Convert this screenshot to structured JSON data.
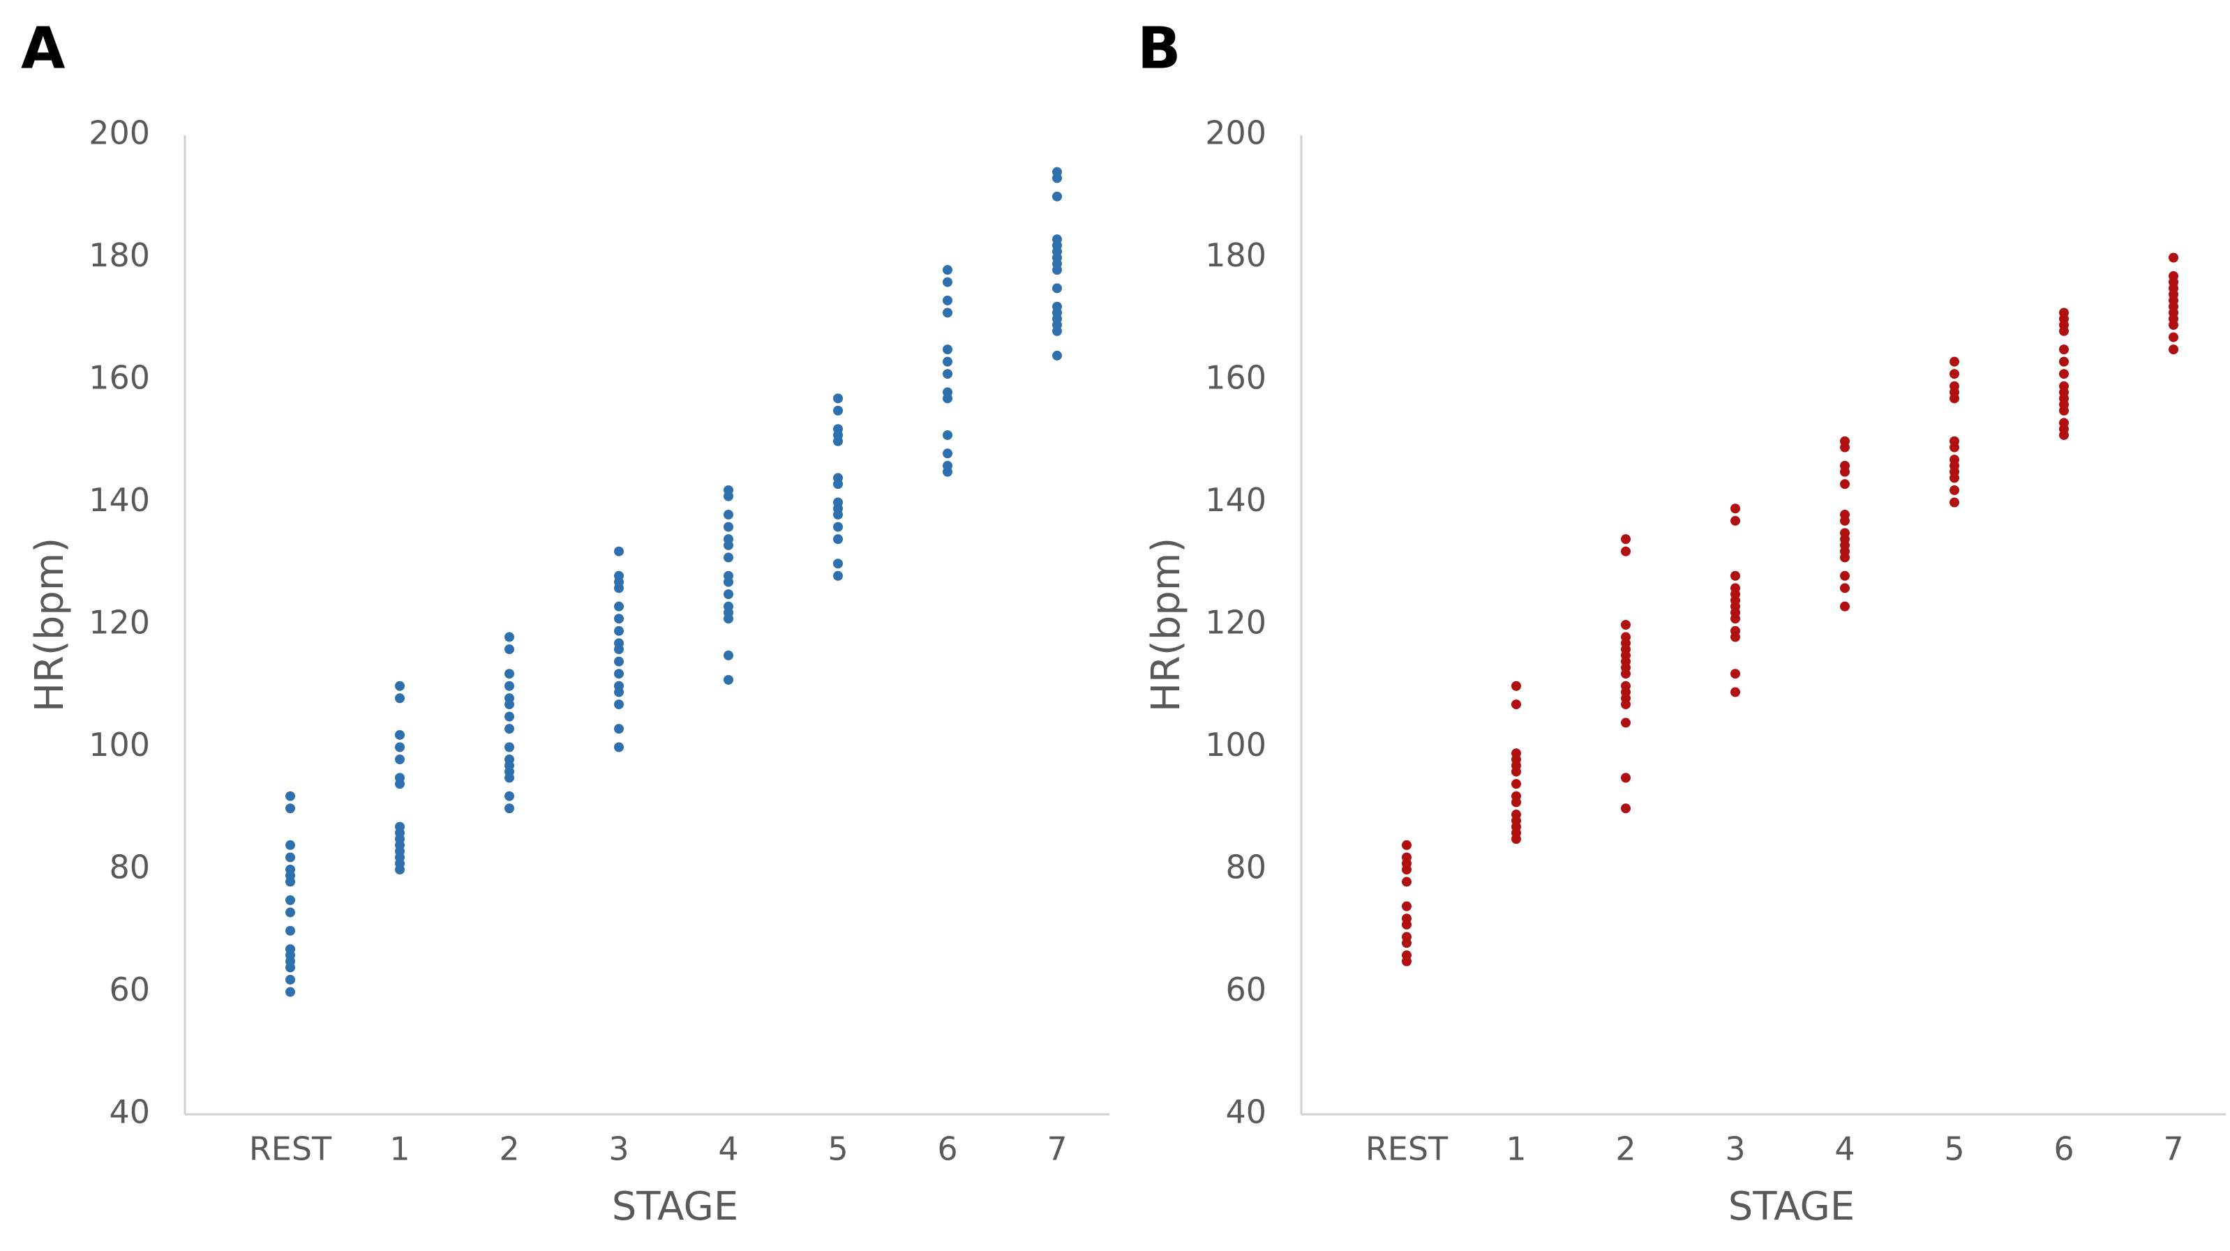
{
  "chart_data": [
    {
      "type": "strip",
      "panel": "A",
      "xlabel": "STAGE",
      "ylabel": "HR(bpm)",
      "color": "#2e6fad",
      "grid": false,
      "categories": [
        "REST",
        "1",
        "2",
        "3",
        "4",
        "5",
        "6",
        "7"
      ],
      "values": [
        [
          92,
          90,
          84,
          82,
          80,
          79,
          78,
          75,
          73,
          70,
          67,
          66,
          65,
          64,
          62,
          60
        ],
        [
          110,
          108,
          102,
          100,
          98,
          95,
          94,
          87,
          86,
          85,
          84,
          83,
          82,
          81,
          80
        ],
        [
          118,
          116,
          112,
          110,
          108,
          107,
          105,
          103,
          100,
          98,
          97,
          96,
          95,
          92,
          90
        ],
        [
          132,
          128,
          127,
          126,
          123,
          121,
          119,
          117,
          116,
          114,
          112,
          110,
          109,
          107,
          103,
          100
        ],
        [
          142,
          141,
          138,
          136,
          134,
          133,
          131,
          128,
          127,
          125,
          123,
          122,
          121,
          115,
          111
        ],
        [
          157,
          155,
          152,
          151,
          150,
          144,
          143,
          140,
          139,
          138,
          136,
          134,
          130,
          128
        ],
        [
          178,
          176,
          173,
          171,
          165,
          163,
          161,
          158,
          157,
          151,
          148,
          146,
          145
        ],
        [
          194,
          193,
          190,
          183,
          182,
          181,
          180,
          179,
          178,
          175,
          172,
          171,
          170,
          169,
          168,
          164
        ]
      ],
      "ylim": [
        40,
        200
      ],
      "yticks": [
        40,
        60,
        80,
        100,
        120,
        140,
        160,
        180,
        200
      ]
    },
    {
      "type": "strip",
      "panel": "B",
      "xlabel": "STAGE",
      "ylabel": "HR(bpm)",
      "color": "#b01010",
      "grid": false,
      "categories": [
        "REST",
        "1",
        "2",
        "3",
        "4",
        "5",
        "6",
        "7"
      ],
      "values": [
        [
          84,
          82,
          81,
          80,
          78,
          74,
          72,
          71,
          69,
          68,
          66,
          65
        ],
        [
          110,
          107,
          99,
          98,
          97,
          96,
          94,
          92,
          91,
          89,
          88,
          87,
          86,
          85
        ],
        [
          134,
          132,
          120,
          118,
          117,
          116,
          115,
          114,
          113,
          112,
          110,
          109,
          108,
          107,
          104,
          95,
          90
        ],
        [
          139,
          137,
          128,
          126,
          125,
          124,
          123,
          122,
          121,
          119,
          118,
          112,
          109
        ],
        [
          150,
          149,
          146,
          145,
          143,
          138,
          137,
          135,
          134,
          133,
          132,
          131,
          128,
          126,
          123
        ],
        [
          163,
          161,
          159,
          158,
          157,
          150,
          149,
          147,
          146,
          145,
          144,
          142,
          140
        ],
        [
          171,
          170,
          169,
          168,
          165,
          163,
          161,
          159,
          158,
          157,
          156,
          155,
          153,
          152,
          151
        ],
        [
          180,
          177,
          176,
          175,
          174,
          173,
          172,
          171,
          170,
          169,
          167,
          165
        ]
      ],
      "ylim": [
        40,
        200
      ],
      "yticks": [
        40,
        60,
        80,
        100,
        120,
        140,
        160,
        180,
        200
      ]
    }
  ]
}
